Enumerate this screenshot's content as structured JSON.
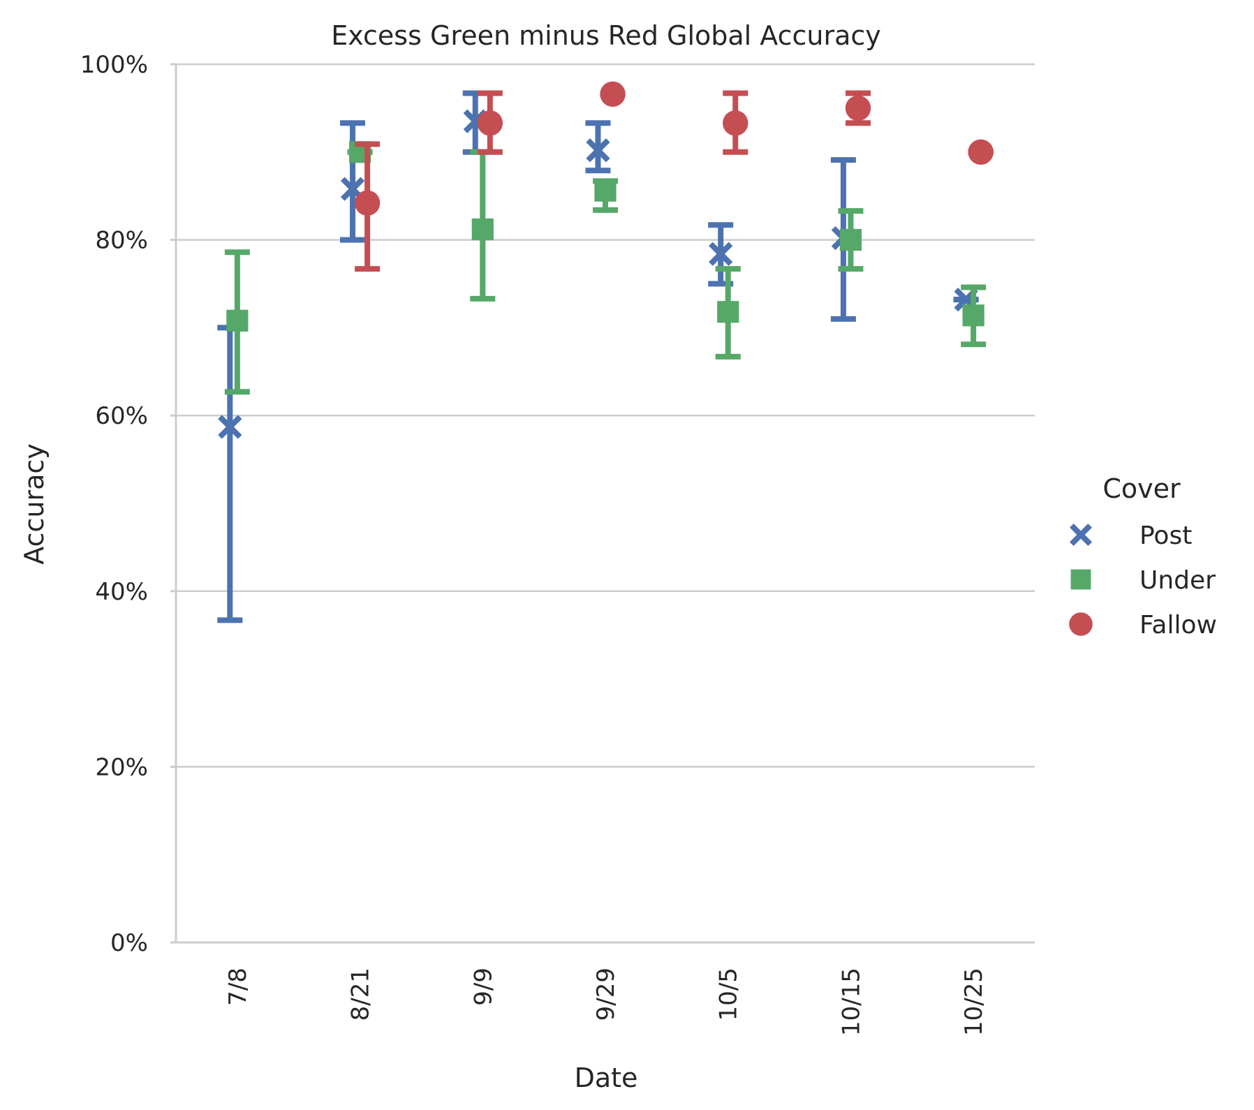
{
  "chart_data": {
    "type": "scatter",
    "title": "Excess Green minus Red Global Accuracy",
    "xlabel": "Date",
    "ylabel": "Accuracy",
    "categories": [
      "7/8",
      "8/21",
      "9/9",
      "9/29",
      "10/5",
      "10/15",
      "10/25"
    ],
    "y_ticks": [
      "0%",
      "20%",
      "40%",
      "60%",
      "80%",
      "100%"
    ],
    "ylim": [
      0,
      100
    ],
    "grid": "horizontal",
    "legend": {
      "title": "Cover",
      "placement": "right"
    },
    "series": [
      {
        "name": "Post",
        "marker": "x",
        "color": "#4c72b0",
        "values": [
          58.7,
          85.8,
          93.5,
          90.2,
          78.4,
          80.2,
          73.2
        ],
        "err_low": [
          36.7,
          80.0,
          90.0,
          87.9,
          75.0,
          71.0,
          73.2
        ],
        "err_high": [
          70.0,
          93.3,
          96.7,
          93.3,
          81.7,
          89.1,
          73.2
        ]
      },
      {
        "name": "Under",
        "marker": "square",
        "color": "#55a868",
        "values": [
          70.8,
          90.0,
          81.2,
          85.6,
          71.8,
          80.0,
          71.4
        ],
        "err_low": [
          62.7,
          90.0,
          73.3,
          83.4,
          66.7,
          76.7,
          68.1
        ],
        "err_high": [
          78.6,
          90.0,
          90.0,
          86.7,
          76.7,
          83.3,
          74.6
        ]
      },
      {
        "name": "Fallow",
        "marker": "circle",
        "color": "#c44e52",
        "values": [
          null,
          84.2,
          93.3,
          96.6,
          93.3,
          95.0,
          90.0
        ],
        "err_low": [
          null,
          76.7,
          90.0,
          96.6,
          90.0,
          93.3,
          90.0
        ],
        "err_high": [
          null,
          90.9,
          96.7,
          96.6,
          96.7,
          96.7,
          90.0
        ]
      }
    ]
  }
}
